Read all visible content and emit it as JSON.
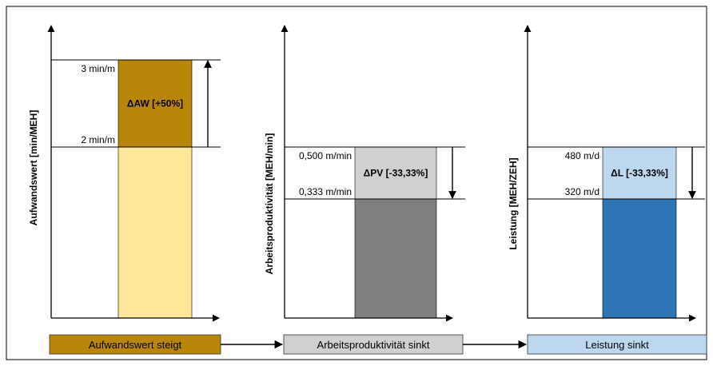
{
  "chart_data": [
    {
      "type": "bar",
      "ylabel": "Aufwandswert [min/MEH]",
      "level_labels": [
        "3 min/m",
        "2 min/m"
      ],
      "values": {
        "high": 3,
        "low": 2
      },
      "delta_label": "ΔAW [+50%]",
      "delta_direction": "up",
      "colors": {
        "delta": "#B8860B",
        "base": "#FFE699"
      },
      "caption": "Aufwandswert steigt",
      "caption_color": "#B8860B"
    },
    {
      "type": "bar",
      "ylabel": "Arbeitsproduktivität [MEH/min]",
      "level_labels": [
        "0,500 m/min",
        "0,333 m/min"
      ],
      "values": {
        "high": 0.5,
        "low": 0.333
      },
      "delta_label": "ΔPV [-33,33%]",
      "delta_direction": "down",
      "colors": {
        "delta": "#D0D0D0",
        "base": "#7F7F7F"
      },
      "caption": "Arbeitsproduktivität sinkt",
      "caption_color": "#D0D0D0"
    },
    {
      "type": "bar",
      "ylabel": "Leistung [MEH/ZEH]",
      "level_labels": [
        "480 m/d",
        "320 m/d"
      ],
      "values": {
        "high": 480,
        "low": 320
      },
      "delta_label": "ΔL [-33,33%]",
      "delta_direction": "down",
      "colors": {
        "delta": "#BDD7EE",
        "base": "#2E75B6"
      },
      "caption": "Leistung sinkt",
      "caption_color": "#BDD7EE"
    }
  ]
}
